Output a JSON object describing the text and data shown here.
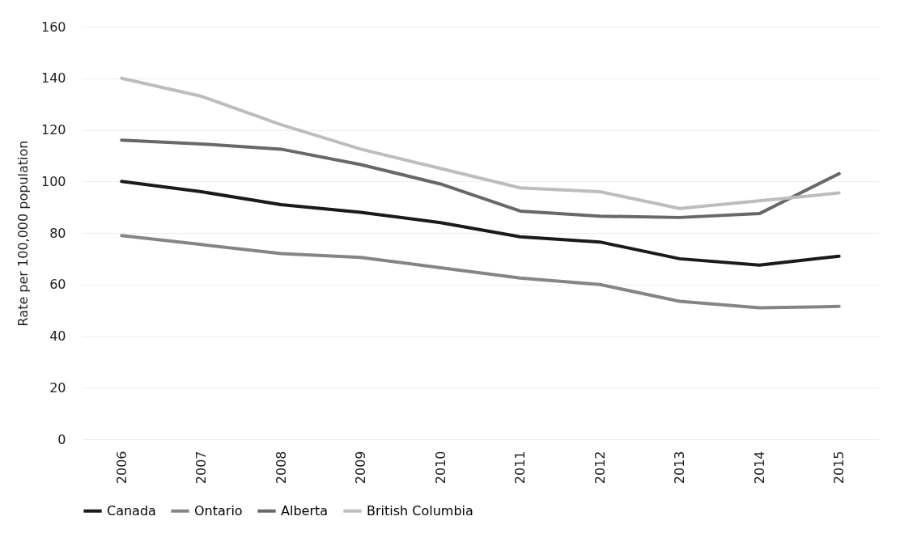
{
  "chart_data": {
    "type": "line",
    "ylabel": "Rate per 100,000 population",
    "categories": [
      "2006",
      "2007",
      "2008",
      "2009",
      "2010",
      "2011",
      "2012",
      "2013",
      "2014",
      "2015"
    ],
    "series": [
      {
        "name": "Canada",
        "color": "#1a1a1a",
        "values": [
          100,
          96,
          91,
          88,
          84,
          78.5,
          76.5,
          70,
          67.5,
          71
        ]
      },
      {
        "name": "Ontario",
        "color": "#858585",
        "values": [
          79,
          75.5,
          72,
          70.5,
          66.5,
          62.5,
          60,
          53.5,
          51,
          51.5
        ]
      },
      {
        "name": "Alberta",
        "color": "#686868",
        "values": [
          116,
          114.5,
          112.5,
          106.5,
          99,
          88.5,
          86.5,
          86,
          87.5,
          103
        ]
      },
      {
        "name": "British Columbia",
        "color": "#bdbdbd",
        "values": [
          140,
          133,
          122,
          112.5,
          105,
          97.5,
          96,
          89.5,
          92.5,
          95.5
        ]
      }
    ],
    "ylim": [
      0,
      160
    ],
    "yticks": [
      0,
      20,
      40,
      60,
      80,
      100,
      120,
      140,
      160
    ],
    "grid": "y",
    "legend": "bottom",
    "marker": "none",
    "line_style": "solid"
  }
}
